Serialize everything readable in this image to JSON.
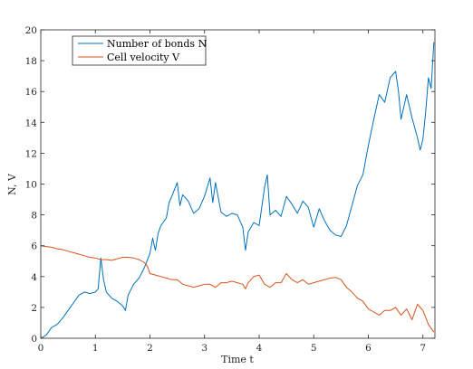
{
  "chart_data": {
    "type": "line",
    "title": "",
    "xlabel": "Time t",
    "ylabel": "N, V",
    "xlim": [
      0,
      7.22
    ],
    "ylim": [
      0,
      20
    ],
    "x_ticks": [
      "0",
      "1",
      "2",
      "3",
      "4",
      "5",
      "6",
      "7"
    ],
    "y_ticks": [
      "0",
      "2",
      "4",
      "6",
      "8",
      "10",
      "12",
      "14",
      "16",
      "18",
      "20"
    ],
    "grid": false,
    "legend_position": "top-left",
    "series": [
      {
        "name": "Number of bonds N",
        "color": "#0072bd",
        "x": [
          0,
          0.1,
          0.2,
          0.3,
          0.4,
          0.5,
          0.6,
          0.7,
          0.8,
          0.9,
          1.0,
          1.05,
          1.1,
          1.15,
          1.2,
          1.3,
          1.4,
          1.5,
          1.55,
          1.6,
          1.7,
          1.8,
          1.9,
          2.0,
          2.05,
          2.1,
          2.15,
          2.2,
          2.3,
          2.35,
          2.4,
          2.5,
          2.55,
          2.6,
          2.7,
          2.8,
          2.9,
          3.0,
          3.1,
          3.15,
          3.2,
          3.3,
          3.4,
          3.5,
          3.6,
          3.7,
          3.75,
          3.8,
          3.9,
          4.0,
          4.1,
          4.15,
          4.2,
          4.3,
          4.4,
          4.5,
          4.6,
          4.7,
          4.8,
          4.9,
          5.0,
          5.1,
          5.2,
          5.3,
          5.4,
          5.5,
          5.6,
          5.7,
          5.8,
          5.9,
          6.0,
          6.1,
          6.2,
          6.3,
          6.4,
          6.5,
          6.55,
          6.6,
          6.7,
          6.8,
          6.9,
          6.95,
          7.0,
          7.05,
          7.1,
          7.15,
          7.2
        ],
        "y": [
          0,
          0.2,
          0.7,
          0.9,
          1.3,
          1.8,
          2.3,
          2.8,
          3.0,
          2.9,
          3.0,
          3.2,
          5.2,
          3.8,
          3.0,
          2.6,
          2.4,
          2.1,
          1.8,
          2.8,
          3.5,
          3.9,
          4.6,
          5.5,
          6.5,
          5.7,
          6.8,
          7.3,
          7.8,
          8.8,
          9.2,
          10.1,
          8.6,
          9.3,
          8.9,
          8.1,
          8.4,
          9.2,
          10.4,
          8.8,
          10.1,
          8.2,
          7.9,
          8.1,
          8.0,
          7.2,
          5.7,
          6.9,
          7.5,
          7.3,
          9.8,
          10.6,
          8.0,
          8.3,
          7.9,
          9.2,
          8.7,
          8.1,
          8.9,
          8.5,
          7.2,
          8.4,
          7.6,
          7.0,
          6.7,
          6.6,
          7.3,
          8.6,
          9.9,
          10.6,
          12.5,
          14.2,
          15.8,
          15.3,
          16.9,
          17.3,
          16.1,
          14.2,
          15.8,
          14.3,
          13.0,
          12.2,
          12.9,
          14.7,
          16.9,
          16.2,
          19.2
        ]
      },
      {
        "name": "Cell velocity V",
        "color": "#d95319",
        "x": [
          0,
          0.1,
          0.2,
          0.3,
          0.4,
          0.5,
          0.6,
          0.7,
          0.8,
          0.9,
          1.0,
          1.1,
          1.2,
          1.3,
          1.4,
          1.5,
          1.6,
          1.7,
          1.8,
          1.9,
          1.95,
          2.0,
          2.1,
          2.2,
          2.3,
          2.4,
          2.5,
          2.6,
          2.7,
          2.8,
          2.9,
          3.0,
          3.1,
          3.2,
          3.3,
          3.4,
          3.5,
          3.6,
          3.7,
          3.75,
          3.8,
          3.9,
          4.0,
          4.1,
          4.2,
          4.3,
          4.4,
          4.5,
          4.6,
          4.7,
          4.8,
          4.9,
          5.0,
          5.1,
          5.2,
          5.3,
          5.4,
          5.5,
          5.6,
          5.7,
          5.8,
          5.9,
          6.0,
          6.1,
          6.2,
          6.3,
          6.4,
          6.5,
          6.6,
          6.7,
          6.8,
          6.9,
          7.0,
          7.1,
          7.2
        ],
        "y": [
          6.0,
          5.95,
          5.9,
          5.8,
          5.75,
          5.65,
          5.55,
          5.45,
          5.35,
          5.25,
          5.2,
          5.1,
          5.1,
          5.05,
          5.15,
          5.25,
          5.25,
          5.2,
          5.1,
          4.9,
          4.7,
          4.2,
          4.1,
          4.0,
          3.9,
          3.8,
          3.8,
          3.5,
          3.4,
          3.3,
          3.4,
          3.5,
          3.5,
          3.3,
          3.6,
          3.6,
          3.7,
          3.6,
          3.5,
          3.2,
          3.6,
          4.0,
          4.1,
          3.5,
          3.3,
          3.6,
          3.6,
          4.2,
          3.8,
          3.6,
          3.8,
          3.5,
          3.6,
          3.7,
          3.8,
          3.9,
          3.95,
          3.8,
          3.3,
          3.0,
          2.6,
          2.4,
          1.9,
          1.7,
          1.5,
          1.8,
          1.8,
          2.0,
          1.5,
          1.9,
          1.2,
          2.2,
          1.8,
          0.9,
          0.4
        ]
      }
    ]
  }
}
